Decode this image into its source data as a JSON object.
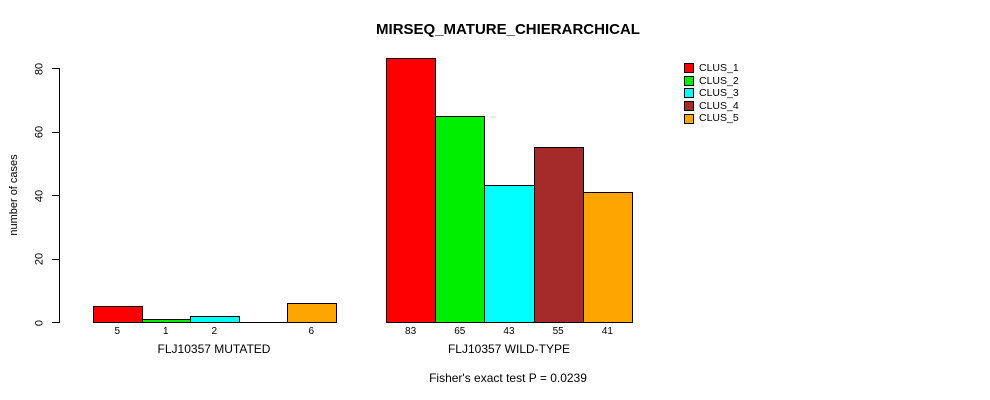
{
  "chart_data": {
    "type": "bar",
    "title": "MIRSEQ_MATURE_CHIERARCHICAL",
    "subtitle": "Fisher's exact test P = 0.0239",
    "ylabel": "number of cases",
    "xlabel": "",
    "ylim": [
      0,
      80
    ],
    "yticks": [
      0,
      20,
      40,
      60,
      80
    ],
    "grid": false,
    "legend": {
      "position": "top-right",
      "entries": [
        {
          "label": "CLUS_1",
          "color": "#FF0000"
        },
        {
          "label": "CLUS_2",
          "color": "#00EE00"
        },
        {
          "label": "CLUS_3",
          "color": "#00FFFF"
        },
        {
          "label": "CLUS_4",
          "color": "#A52A2A"
        },
        {
          "label": "CLUS_5",
          "color": "#FFA500"
        }
      ]
    },
    "series_colors": [
      "#FF0000",
      "#00EE00",
      "#00FFFF",
      "#A52A2A",
      "#FFA500"
    ],
    "groups": [
      {
        "label": "FLJ10357 MUTATED",
        "values": [
          5,
          1,
          2,
          0,
          6
        ],
        "bar_labels": [
          "5",
          "1",
          "2",
          "",
          "6"
        ]
      },
      {
        "label": "FLJ10357 WILD-TYPE",
        "values": [
          83,
          65,
          43,
          55,
          41
        ],
        "bar_labels": [
          "83",
          "65",
          "43",
          "55",
          "41"
        ]
      }
    ]
  }
}
